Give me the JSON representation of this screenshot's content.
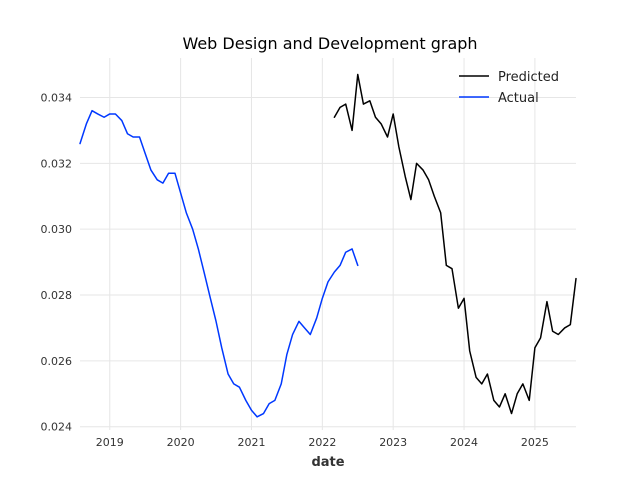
{
  "chart_data": {
    "type": "line",
    "title": "Web Design and Development graph",
    "xlabel": "date",
    "ylabel": "",
    "xlim": [
      2018.58,
      2025.58
    ],
    "ylim": [
      0.0239,
      0.0352
    ],
    "grid": true,
    "legend_position": "top-right",
    "x_ticks": [
      {
        "value": 2019,
        "label": "2019"
      },
      {
        "value": 2020,
        "label": "2020"
      },
      {
        "value": 2021,
        "label": "2021"
      },
      {
        "value": 2022,
        "label": "2022"
      },
      {
        "value": 2023,
        "label": "2023"
      },
      {
        "value": 2024,
        "label": "2024"
      },
      {
        "value": 2025,
        "label": "2025"
      }
    ],
    "y_ticks": [
      {
        "value": 0.024,
        "label": "0.024"
      },
      {
        "value": 0.026,
        "label": "0.026"
      },
      {
        "value": 0.028,
        "label": "0.028"
      },
      {
        "value": 0.03,
        "label": "0.030"
      },
      {
        "value": 0.032,
        "label": "0.032"
      },
      {
        "value": 0.034,
        "label": "0.034"
      }
    ],
    "series": [
      {
        "name": "Predicted",
        "color": "#000000",
        "x": [
          2022.17,
          2022.25,
          2022.33,
          2022.42,
          2022.5,
          2022.58,
          2022.67,
          2022.75,
          2022.83,
          2022.92,
          2023.0,
          2023.08,
          2023.17,
          2023.25,
          2023.33,
          2023.42,
          2023.5,
          2023.58,
          2023.67,
          2023.75,
          2023.83,
          2023.92,
          2024.0,
          2024.08,
          2024.17,
          2024.25,
          2024.33,
          2024.42,
          2024.5,
          2024.58,
          2024.67,
          2024.75,
          2024.83,
          2024.92,
          2025.0,
          2025.08,
          2025.17,
          2025.25,
          2025.33,
          2025.42,
          2025.5,
          2025.58
        ],
        "y": [
          0.0334,
          0.0337,
          0.0338,
          0.033,
          0.0347,
          0.0338,
          0.0339,
          0.0334,
          0.0332,
          0.0328,
          0.0335,
          0.0325,
          0.0316,
          0.0309,
          0.032,
          0.0318,
          0.0315,
          0.031,
          0.0305,
          0.0289,
          0.0288,
          0.0276,
          0.0279,
          0.0263,
          0.0255,
          0.0253,
          0.0256,
          0.0248,
          0.0246,
          0.025,
          0.0244,
          0.025,
          0.0253,
          0.0248,
          0.0264,
          0.0267,
          0.0278,
          0.0269,
          0.0268,
          0.027,
          0.0271,
          0.0285
        ]
      },
      {
        "name": "Actual",
        "color": "#0038ff",
        "x": [
          2018.58,
          2018.67,
          2018.75,
          2018.83,
          2018.92,
          2019.0,
          2019.08,
          2019.17,
          2019.25,
          2019.33,
          2019.42,
          2019.5,
          2019.58,
          2019.67,
          2019.75,
          2019.83,
          2019.92,
          2020.0,
          2020.08,
          2020.17,
          2020.25,
          2020.33,
          2020.42,
          2020.5,
          2020.58,
          2020.67,
          2020.75,
          2020.83,
          2020.92,
          2021.0,
          2021.08,
          2021.17,
          2021.25,
          2021.33,
          2021.42,
          2021.5,
          2021.58,
          2021.67,
          2021.75,
          2021.83,
          2021.92,
          2022.0,
          2022.08,
          2022.17,
          2022.25,
          2022.33,
          2022.42,
          2022.5
        ],
        "y": [
          0.0326,
          0.0332,
          0.0336,
          0.0335,
          0.0334,
          0.0335,
          0.0335,
          0.0333,
          0.0329,
          0.0328,
          0.0328,
          0.0323,
          0.0318,
          0.0315,
          0.0314,
          0.0317,
          0.0317,
          0.0311,
          0.0305,
          0.03,
          0.0294,
          0.0287,
          0.0279,
          0.0272,
          0.0264,
          0.0256,
          0.0253,
          0.0252,
          0.0248,
          0.0245,
          0.0243,
          0.0244,
          0.0247,
          0.0248,
          0.0253,
          0.0262,
          0.0268,
          0.0272,
          0.027,
          0.0268,
          0.0273,
          0.0279,
          0.0284,
          0.0287,
          0.0289,
          0.0293,
          0.0294,
          0.0289
        ]
      }
    ]
  }
}
